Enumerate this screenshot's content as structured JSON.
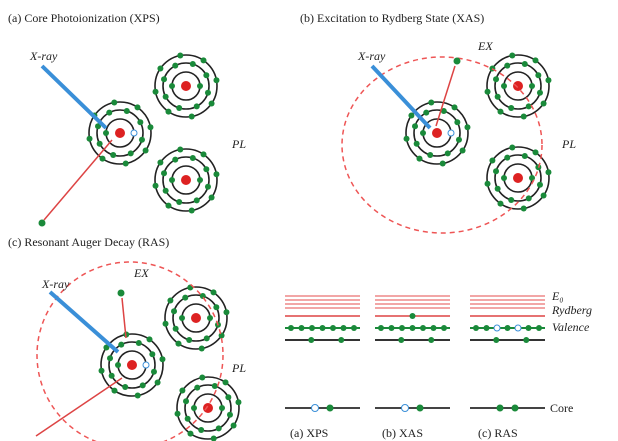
{
  "panels": [
    {
      "title": "(a) Core Photoionization (XPS)",
      "xray": "X-ray",
      "pl": "PL"
    },
    {
      "title": "(b) Excitation to Rydberg State (XAS)",
      "xray": "X-ray",
      "ex": "EX",
      "pl": "PL"
    },
    {
      "title": "(c) Resonant Auger Decay (RAS)",
      "xray": "X-ray",
      "ex": "EX",
      "pl": "PL"
    }
  ],
  "levels": {
    "e0": "E₀",
    "rydberg": "Rydberg",
    "valence": "Valence",
    "core": "Core"
  },
  "columns": [
    "(a) XPS",
    "(b) XAS",
    "(c) RAS"
  ]
}
